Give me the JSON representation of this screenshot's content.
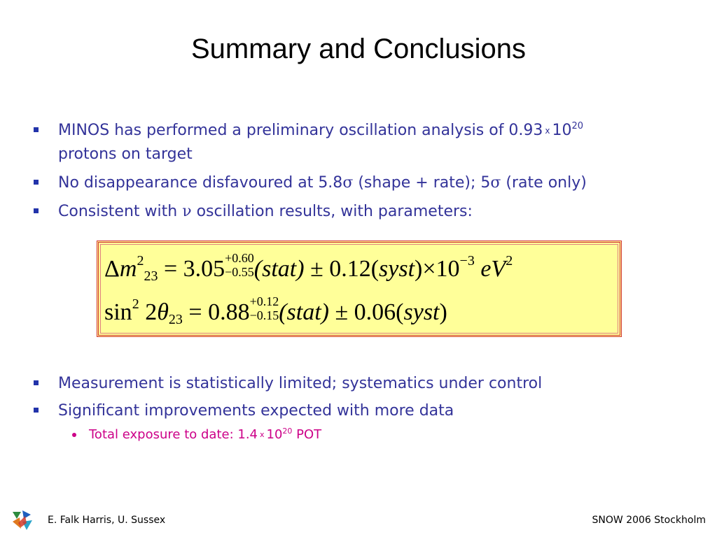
{
  "slide": {
    "title": "Summary and Conclusions"
  },
  "bullets": {
    "b1_text": "MINOS has performed a preliminary oscillation analysis of 0.93",
    "b1_times": "x",
    "b1_base": "10",
    "b1_exp": "20",
    "b1_line2": "protons on target",
    "b2_a": "No disappearance disfavoured at 5.8",
    "b2_sigma1": "σ",
    "b2_b": " (shape + rate); 5",
    "b2_sigma2": "σ",
    "b2_c": " (rate only)",
    "b3_a": "Consistent with ",
    "b3_nu": "ν",
    "b3_b": " oscillation results, with parameters:",
    "b4": "Measurement is statistically limited; systematics under control",
    "b5": "Significant improvements expected with more data",
    "sub1_a": "Total exposure to date: 1.4",
    "sub1_times": "x",
    "sub1_base": "10",
    "sub1_exp": "20",
    "sub1_b": " POT"
  },
  "equations": {
    "eq1": {
      "delta": "Δ",
      "m": "m",
      "sq": "2",
      "idx": "23",
      "eq": " = 3.05",
      "up": "+0.60",
      "down": "−0.55",
      "stat": "(stat)",
      "pm": " ± 0.12(",
      "syst": "syst",
      "times": ")×10",
      "exp": "−3",
      "unit": " eV",
      "unitexp": "2"
    },
    "eq2": {
      "sin": "sin",
      "sq": "2",
      "two": " 2",
      "theta": "θ",
      "idx": "23",
      "eq": " = 0.88",
      "up": "+0.12",
      "down": "−0.15",
      "stat": "(stat)",
      "pm": " ± 0.06(",
      "syst": "syst",
      "close": ")"
    }
  },
  "footer": {
    "left": "E. Falk Harris, U. Sussex",
    "right": "SNOW 2006 Stockholm"
  },
  "colors": {
    "bullet_text": "#333399",
    "sub_bullet_text": "#cc0088",
    "eq_box_fill": "#ffff99",
    "eq_box_border": "#d03030"
  },
  "icons": {
    "logo": "conference-logo-icon"
  }
}
